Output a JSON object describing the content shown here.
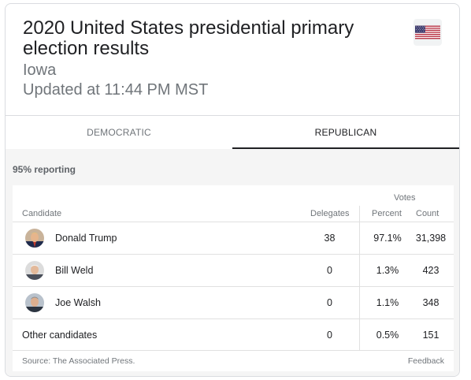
{
  "header": {
    "title": "2020 United States presidential primary election results",
    "state": "Iowa",
    "updated": "Updated at 11:44 PM MST",
    "flag_icon": "us-flag-icon"
  },
  "tabs": [
    {
      "label": "DEMOCRATIC",
      "active": false
    },
    {
      "label": "REPUBLICAN",
      "active": true
    }
  ],
  "reporting": "95% reporting",
  "table": {
    "votes_header": "Votes",
    "columns": {
      "candidate": "Candidate",
      "delegates": "Delegates",
      "percent": "Percent",
      "count": "Count"
    },
    "rows": [
      {
        "name": "Donald Trump",
        "delegates": "38",
        "percent": "97.1%",
        "count": "31,398",
        "avatar": true
      },
      {
        "name": "Bill Weld",
        "delegates": "0",
        "percent": "1.3%",
        "count": "423",
        "avatar": true
      },
      {
        "name": "Joe Walsh",
        "delegates": "0",
        "percent": "1.1%",
        "count": "348",
        "avatar": true
      },
      {
        "name": "Other candidates",
        "delegates": "0",
        "percent": "0.5%",
        "count": "151",
        "avatar": false
      }
    ]
  },
  "footer": {
    "source": "Source: The Associated Press.",
    "feedback": "Feedback"
  },
  "colors": {
    "active_tab_underline": "#202124",
    "secondary_text": "#70757a",
    "results_background": "#f5f5f5"
  }
}
